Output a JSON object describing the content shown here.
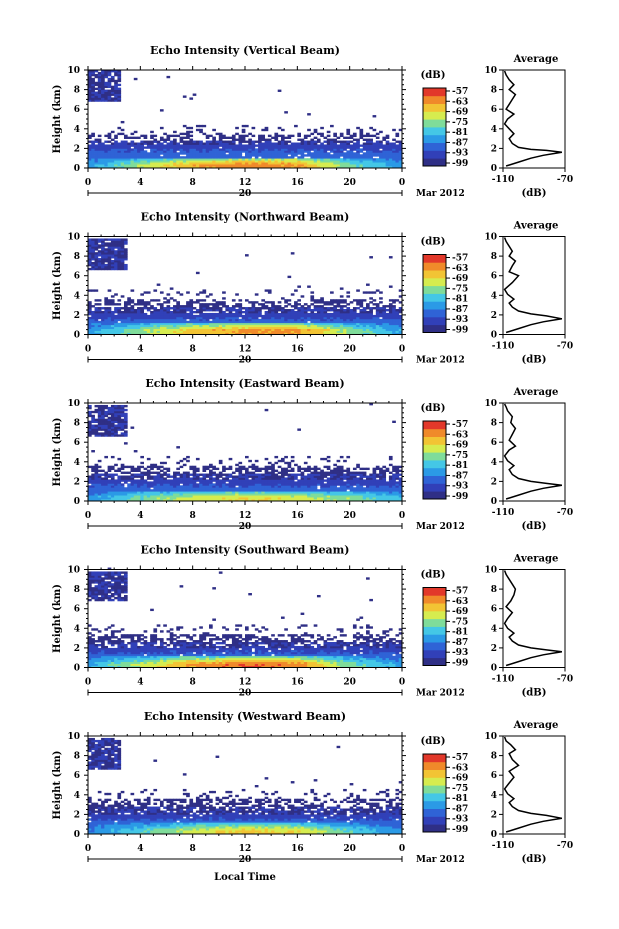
{
  "figure": {
    "xlabel": "Local Time",
    "date_label": "Mar 2012",
    "date_tick": "20",
    "ylabel": "Height (km)",
    "colorbar_unit": "(dB)",
    "avg_title": "Average",
    "avg_xlabel": "(dB)"
  },
  "colors": {
    "scale": [
      "#2f2f86",
      "#3140b8",
      "#2f63d6",
      "#2b9ae6",
      "#44c7e6",
      "#7fdc9a",
      "#d6ec4f",
      "#f2c434",
      "#f08a2a",
      "#e2382a"
    ]
  },
  "chart_data": [
    {
      "type": "heatmap",
      "title": "Echo Intensity (Vertical Beam)",
      "xlabel": "Local Time",
      "ylabel": "Height (km)",
      "xlim": [
        0,
        24
      ],
      "ylim": [
        0,
        10
      ],
      "xticks": [
        "0",
        "4",
        "8",
        "12",
        "16",
        "20",
        "0"
      ],
      "yticks": [
        "0",
        "2",
        "4",
        "6",
        "8",
        "10"
      ],
      "colorbar": {
        "label": "(dB)",
        "ticks": [
          "-57",
          "-63",
          "-69",
          "-75",
          "-81",
          "-87",
          "-93",
          "-99"
        ],
        "range": [
          -99,
          -57
        ]
      },
      "average": {
        "title": "Average",
        "xlabel": "(dB)",
        "xlim": [
          -110,
          -70
        ],
        "xticks": [
          "-110",
          "-70"
        ],
        "yticks": [
          "0",
          "2",
          "4",
          "6",
          "8",
          "10"
        ]
      },
      "sfc_peak": [
        0.3,
        0.6,
        0.8,
        0.9,
        0.85,
        0.5,
        0.3
      ],
      "sfc_top_km": 1.0,
      "sfc_peak_km": 0.3,
      "upper_layer_km": [
        2.3,
        2.8,
        3.3
      ],
      "upper_cloud_hours": [
        0,
        2.5
      ],
      "upper_cloud_km": [
        6.8,
        9.8
      ]
    },
    {
      "type": "heatmap",
      "title": "Echo Intensity (Northward Beam)",
      "xlabel": "Local Time",
      "ylabel": "Height (km)",
      "xlim": [
        0,
        24
      ],
      "ylim": [
        0,
        10
      ],
      "xticks": [
        "0",
        "4",
        "8",
        "12",
        "16",
        "20",
        "0"
      ],
      "yticks": [
        "0",
        "2",
        "4",
        "6",
        "8",
        "10"
      ],
      "colorbar": {
        "label": "(dB)",
        "ticks": [
          "-57",
          "-63",
          "-69",
          "-75",
          "-81",
          "-87",
          "-93",
          "-99"
        ],
        "range": [
          -99,
          -57
        ]
      },
      "average": {
        "title": "Average",
        "xlabel": "(dB)",
        "xlim": [
          -110,
          -70
        ],
        "xticks": [
          "-110",
          "-70"
        ],
        "yticks": [
          "0",
          "2",
          "4",
          "6",
          "8",
          "10"
        ]
      },
      "sfc_peak": [
        0.3,
        0.55,
        0.75,
        0.85,
        0.85,
        0.55,
        0.3
      ],
      "sfc_top_km": 1.2,
      "sfc_peak_km": 0.4,
      "upper_layer_km": [
        2.0,
        2.8,
        3.6
      ],
      "upper_cloud_hours": [
        0,
        3
      ],
      "upper_cloud_km": [
        6.6,
        9.6
      ]
    },
    {
      "type": "heatmap",
      "title": "Echo Intensity (Eastward Beam)",
      "xlabel": "Local Time",
      "ylabel": "Height (km)",
      "xlim": [
        0,
        24
      ],
      "ylim": [
        0,
        10
      ],
      "xticks": [
        "0",
        "4",
        "8",
        "12",
        "16",
        "20",
        "0"
      ],
      "yticks": [
        "0",
        "2",
        "4",
        "6",
        "8",
        "10"
      ],
      "colorbar": {
        "label": "(dB)",
        "ticks": [
          "-57",
          "-63",
          "-69",
          "-75",
          "-81",
          "-87",
          "-93",
          "-99"
        ],
        "range": [
          -99,
          -57
        ]
      },
      "average": {
        "title": "Average",
        "xlabel": "(dB)",
        "xlim": [
          -110,
          -70
        ],
        "xticks": [
          "-110",
          "-70"
        ],
        "yticks": [
          "0",
          "2",
          "4",
          "6",
          "8",
          "10"
        ]
      },
      "sfc_peak": [
        0.3,
        0.5,
        0.65,
        0.7,
        0.65,
        0.55,
        0.35
      ],
      "sfc_top_km": 1.0,
      "sfc_peak_km": 0.3,
      "upper_layer_km": [
        2.0,
        2.7,
        3.6
      ],
      "upper_cloud_hours": [
        0,
        2.8
      ],
      "upper_cloud_km": [
        6.6,
        9.6
      ]
    },
    {
      "type": "heatmap",
      "title": "Echo Intensity (Southward Beam)",
      "xlabel": "Local Time",
      "ylabel": "Height (km)",
      "xlim": [
        0,
        24
      ],
      "ylim": [
        0,
        10
      ],
      "xticks": [
        "0",
        "4",
        "8",
        "12",
        "16",
        "20",
        "0"
      ],
      "yticks": [
        "0",
        "2",
        "4",
        "6",
        "8",
        "10"
      ],
      "colorbar": {
        "label": "(dB)",
        "ticks": [
          "-57",
          "-63",
          "-69",
          "-75",
          "-81",
          "-87",
          "-93",
          "-99"
        ],
        "range": [
          -99,
          -57
        ]
      },
      "average": {
        "title": "Average",
        "xlabel": "(dB)",
        "xlim": [
          -110,
          -70
        ],
        "xticks": [
          "-110",
          "-70"
        ],
        "yticks": [
          "0",
          "2",
          "4",
          "6",
          "8",
          "10"
        ]
      },
      "sfc_peak": [
        0.35,
        0.6,
        0.85,
        0.95,
        0.9,
        0.5,
        0.3
      ],
      "sfc_top_km": 1.1,
      "sfc_peak_km": 0.3,
      "upper_layer_km": [
        1.9,
        2.6,
        3.4
      ],
      "upper_cloud_hours": [
        0,
        3
      ],
      "upper_cloud_km": [
        6.8,
        9.6
      ]
    },
    {
      "type": "heatmap",
      "title": "Echo Intensity (Westward Beam)",
      "xlabel": "Local Time",
      "ylabel": "Height (km)",
      "xlim": [
        0,
        24
      ],
      "ylim": [
        0,
        10
      ],
      "xticks": [
        "0",
        "4",
        "8",
        "12",
        "16",
        "20",
        "0"
      ],
      "yticks": [
        "0",
        "2",
        "4",
        "6",
        "8",
        "10"
      ],
      "colorbar": {
        "label": "(dB)",
        "ticks": [
          "-57",
          "-63",
          "-69",
          "-75",
          "-81",
          "-87",
          "-93",
          "-99"
        ],
        "range": [
          -99,
          -57
        ]
      },
      "average": {
        "title": "Average",
        "xlabel": "(dB)",
        "xlim": [
          -110,
          -70
        ],
        "xticks": [
          "-110",
          "-70"
        ],
        "yticks": [
          "0",
          "2",
          "4",
          "6",
          "8",
          "10"
        ]
      },
      "sfc_peak": [
        0.25,
        0.45,
        0.65,
        0.75,
        0.7,
        0.45,
        0.25
      ],
      "sfc_top_km": 1.1,
      "sfc_peak_km": 0.3,
      "upper_layer_km": [
        1.9,
        2.8,
        3.6
      ],
      "upper_cloud_hours": [
        0,
        2.5
      ],
      "upper_cloud_km": [
        6.6,
        9.6
      ]
    }
  ],
  "averages": [
    [
      [
        -108,
        0.2
      ],
      [
        -100,
        0.6
      ],
      [
        -92,
        1.0
      ],
      [
        -84,
        1.3
      ],
      [
        -76,
        1.5
      ],
      [
        -72,
        1.6
      ],
      [
        -82,
        1.8
      ],
      [
        -92,
        1.9
      ],
      [
        -100,
        2.1
      ],
      [
        -104,
        2.5
      ],
      [
        -106,
        3.0
      ],
      [
        -103,
        3.5
      ],
      [
        -106,
        4.0
      ],
      [
        -109,
        4.5
      ],
      [
        -107,
        5.0
      ],
      [
        -103,
        5.5
      ],
      [
        -108,
        6.0
      ],
      [
        -106,
        6.5
      ],
      [
        -104,
        7.0
      ],
      [
        -102,
        7.5
      ],
      [
        -106,
        8.0
      ],
      [
        -103,
        8.5
      ],
      [
        -106,
        9.0
      ],
      [
        -108,
        9.5
      ],
      [
        -109,
        9.9
      ]
    ],
    [
      [
        -108,
        0.2
      ],
      [
        -100,
        0.6
      ],
      [
        -92,
        1.0
      ],
      [
        -84,
        1.3
      ],
      [
        -76,
        1.5
      ],
      [
        -72,
        1.6
      ],
      [
        -82,
        1.9
      ],
      [
        -92,
        2.1
      ],
      [
        -100,
        2.4
      ],
      [
        -104,
        2.8
      ],
      [
        -106,
        3.2
      ],
      [
        -103,
        3.6
      ],
      [
        -107,
        4.1
      ],
      [
        -109,
        4.6
      ],
      [
        -104,
        5.3
      ],
      [
        -100,
        6.0
      ],
      [
        -106,
        6.4
      ],
      [
        -104,
        7.0
      ],
      [
        -102,
        7.5
      ],
      [
        -106,
        8.0
      ],
      [
        -104,
        8.5
      ],
      [
        -106,
        9.0
      ],
      [
        -108,
        9.5
      ],
      [
        -109,
        9.9
      ]
    ],
    [
      [
        -108,
        0.2
      ],
      [
        -100,
        0.6
      ],
      [
        -92,
        1.0
      ],
      [
        -84,
        1.3
      ],
      [
        -76,
        1.5
      ],
      [
        -72,
        1.6
      ],
      [
        -82,
        1.8
      ],
      [
        -92,
        2.0
      ],
      [
        -100,
        2.3
      ],
      [
        -104,
        2.7
      ],
      [
        -106,
        3.2
      ],
      [
        -103,
        3.6
      ],
      [
        -107,
        4.1
      ],
      [
        -109,
        4.6
      ],
      [
        -106,
        5.2
      ],
      [
        -102,
        5.6
      ],
      [
        -106,
        6.2
      ],
      [
        -104,
        6.8
      ],
      [
        -102,
        7.4
      ],
      [
        -105,
        8.0
      ],
      [
        -104,
        8.6
      ],
      [
        -107,
        9.2
      ],
      [
        -108,
        9.6
      ],
      [
        -109,
        9.9
      ]
    ],
    [
      [
        -108,
        0.2
      ],
      [
        -100,
        0.6
      ],
      [
        -92,
        1.0
      ],
      [
        -84,
        1.3
      ],
      [
        -76,
        1.5
      ],
      [
        -72,
        1.6
      ],
      [
        -82,
        1.8
      ],
      [
        -92,
        2.0
      ],
      [
        -100,
        2.3
      ],
      [
        -104,
        2.7
      ],
      [
        -106,
        3.1
      ],
      [
        -103,
        3.5
      ],
      [
        -107,
        4.0
      ],
      [
        -109,
        4.5
      ],
      [
        -107,
        5.0
      ],
      [
        -104,
        5.6
      ],
      [
        -108,
        6.2
      ],
      [
        -105,
        6.8
      ],
      [
        -103,
        7.4
      ],
      [
        -102,
        8.0
      ],
      [
        -104,
        8.5
      ],
      [
        -106,
        9.0
      ],
      [
        -108,
        9.5
      ],
      [
        -109,
        9.9
      ]
    ],
    [
      [
        -108,
        0.2
      ],
      [
        -100,
        0.6
      ],
      [
        -92,
        1.0
      ],
      [
        -84,
        1.3
      ],
      [
        -76,
        1.5
      ],
      [
        -72,
        1.6
      ],
      [
        -82,
        1.9
      ],
      [
        -92,
        2.1
      ],
      [
        -100,
        2.4
      ],
      [
        -104,
        2.8
      ],
      [
        -106,
        3.2
      ],
      [
        -103,
        3.6
      ],
      [
        -107,
        4.1
      ],
      [
        -109,
        4.6
      ],
      [
        -106,
        5.2
      ],
      [
        -103,
        5.8
      ],
      [
        -106,
        6.4
      ],
      [
        -100,
        7.0
      ],
      [
        -104,
        7.6
      ],
      [
        -106,
        8.2
      ],
      [
        -102,
        8.6
      ],
      [
        -105,
        9.1
      ],
      [
        -108,
        9.5
      ],
      [
        -109,
        9.9
      ]
    ]
  ]
}
